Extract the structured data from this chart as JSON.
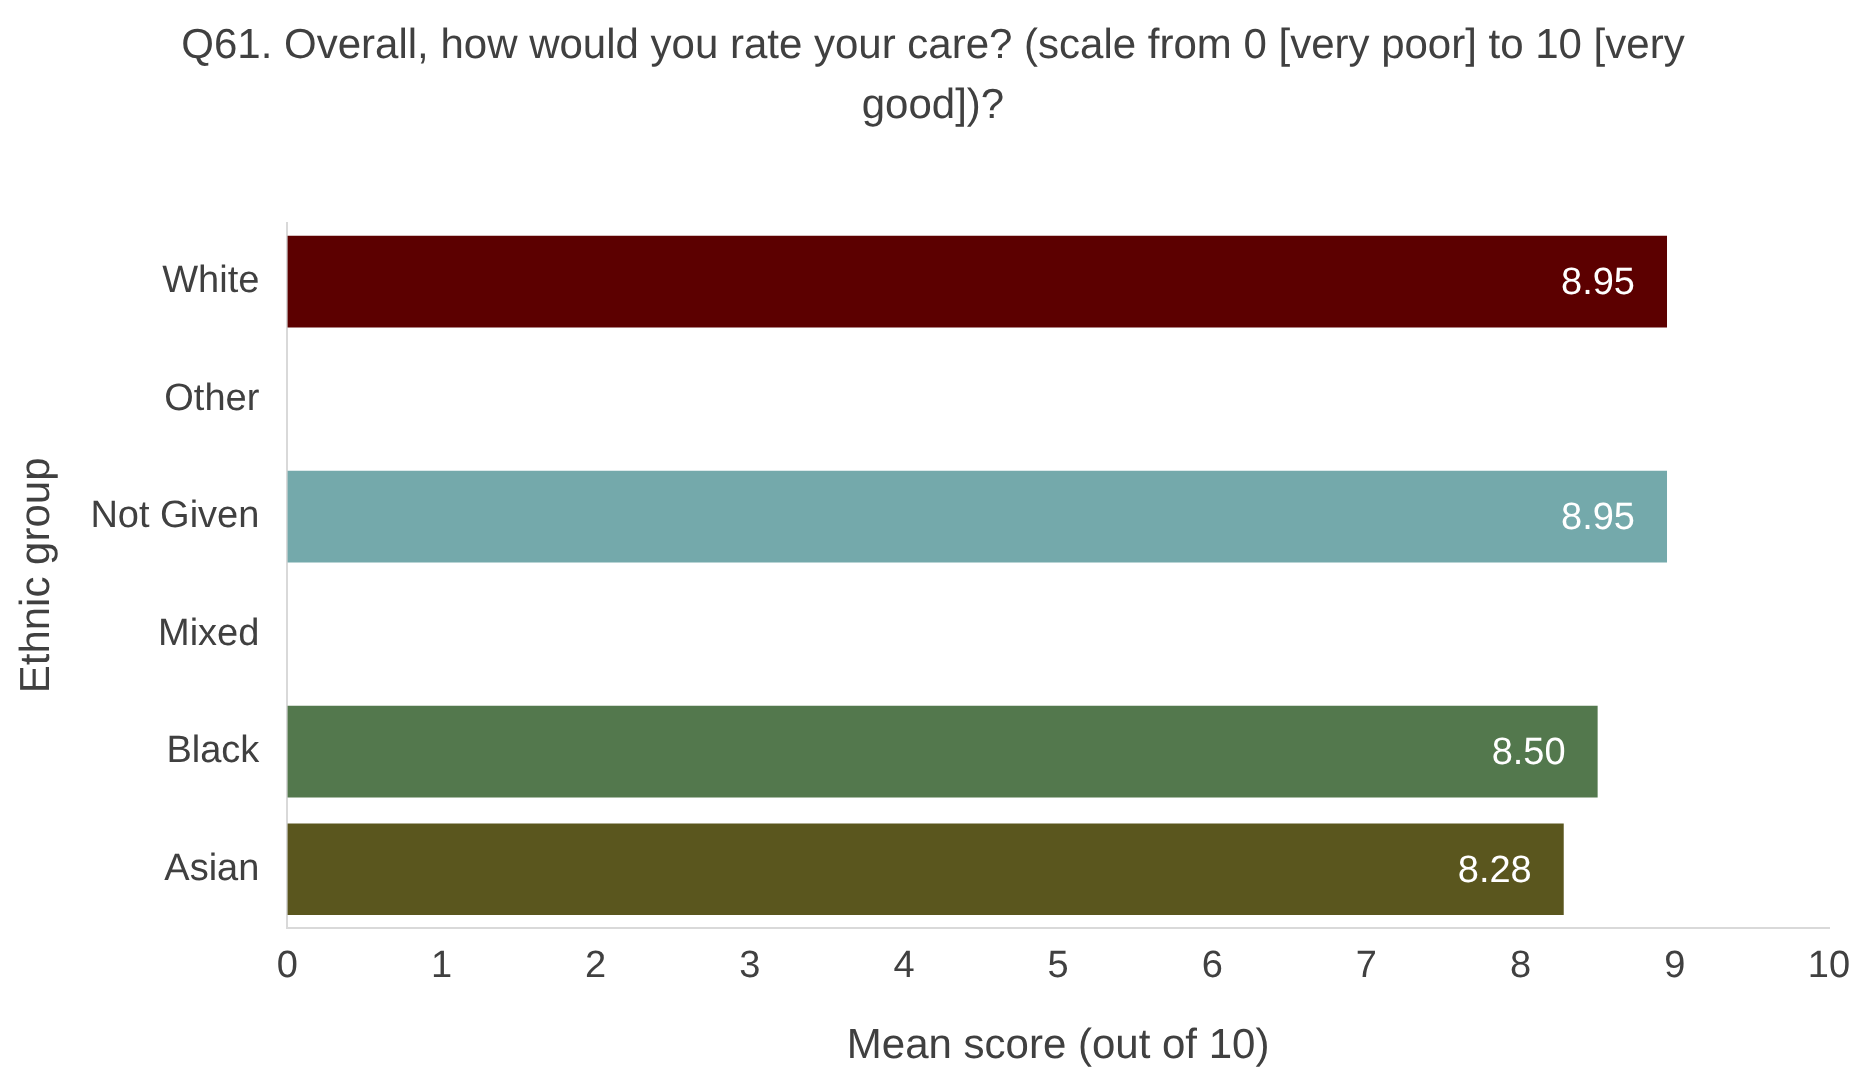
{
  "chart_data": {
    "type": "bar",
    "orientation": "horizontal",
    "title": "Q61. Overall, how would you rate your care? (scale from 0 [very poor] to 10 [very good])?",
    "xlabel": "Mean score (out of 10)",
    "ylabel": "Ethnic group",
    "categories": [
      "White",
      "Other",
      "Not Given",
      "Mixed",
      "Black",
      "Asian"
    ],
    "values": [
      8.95,
      null,
      8.95,
      null,
      8.5,
      8.28
    ],
    "colors": [
      "#5c0000",
      null,
      "#74a9ab",
      null,
      "#53784d",
      "#5a561e"
    ],
    "value_labels": [
      "8.95",
      null,
      "8.95",
      null,
      "8.50",
      "8.28"
    ],
    "xlim": [
      0,
      10
    ],
    "xticks": [
      0,
      1,
      2,
      3,
      4,
      5,
      6,
      7,
      8,
      9,
      10
    ],
    "grid": false,
    "legend": false
  }
}
